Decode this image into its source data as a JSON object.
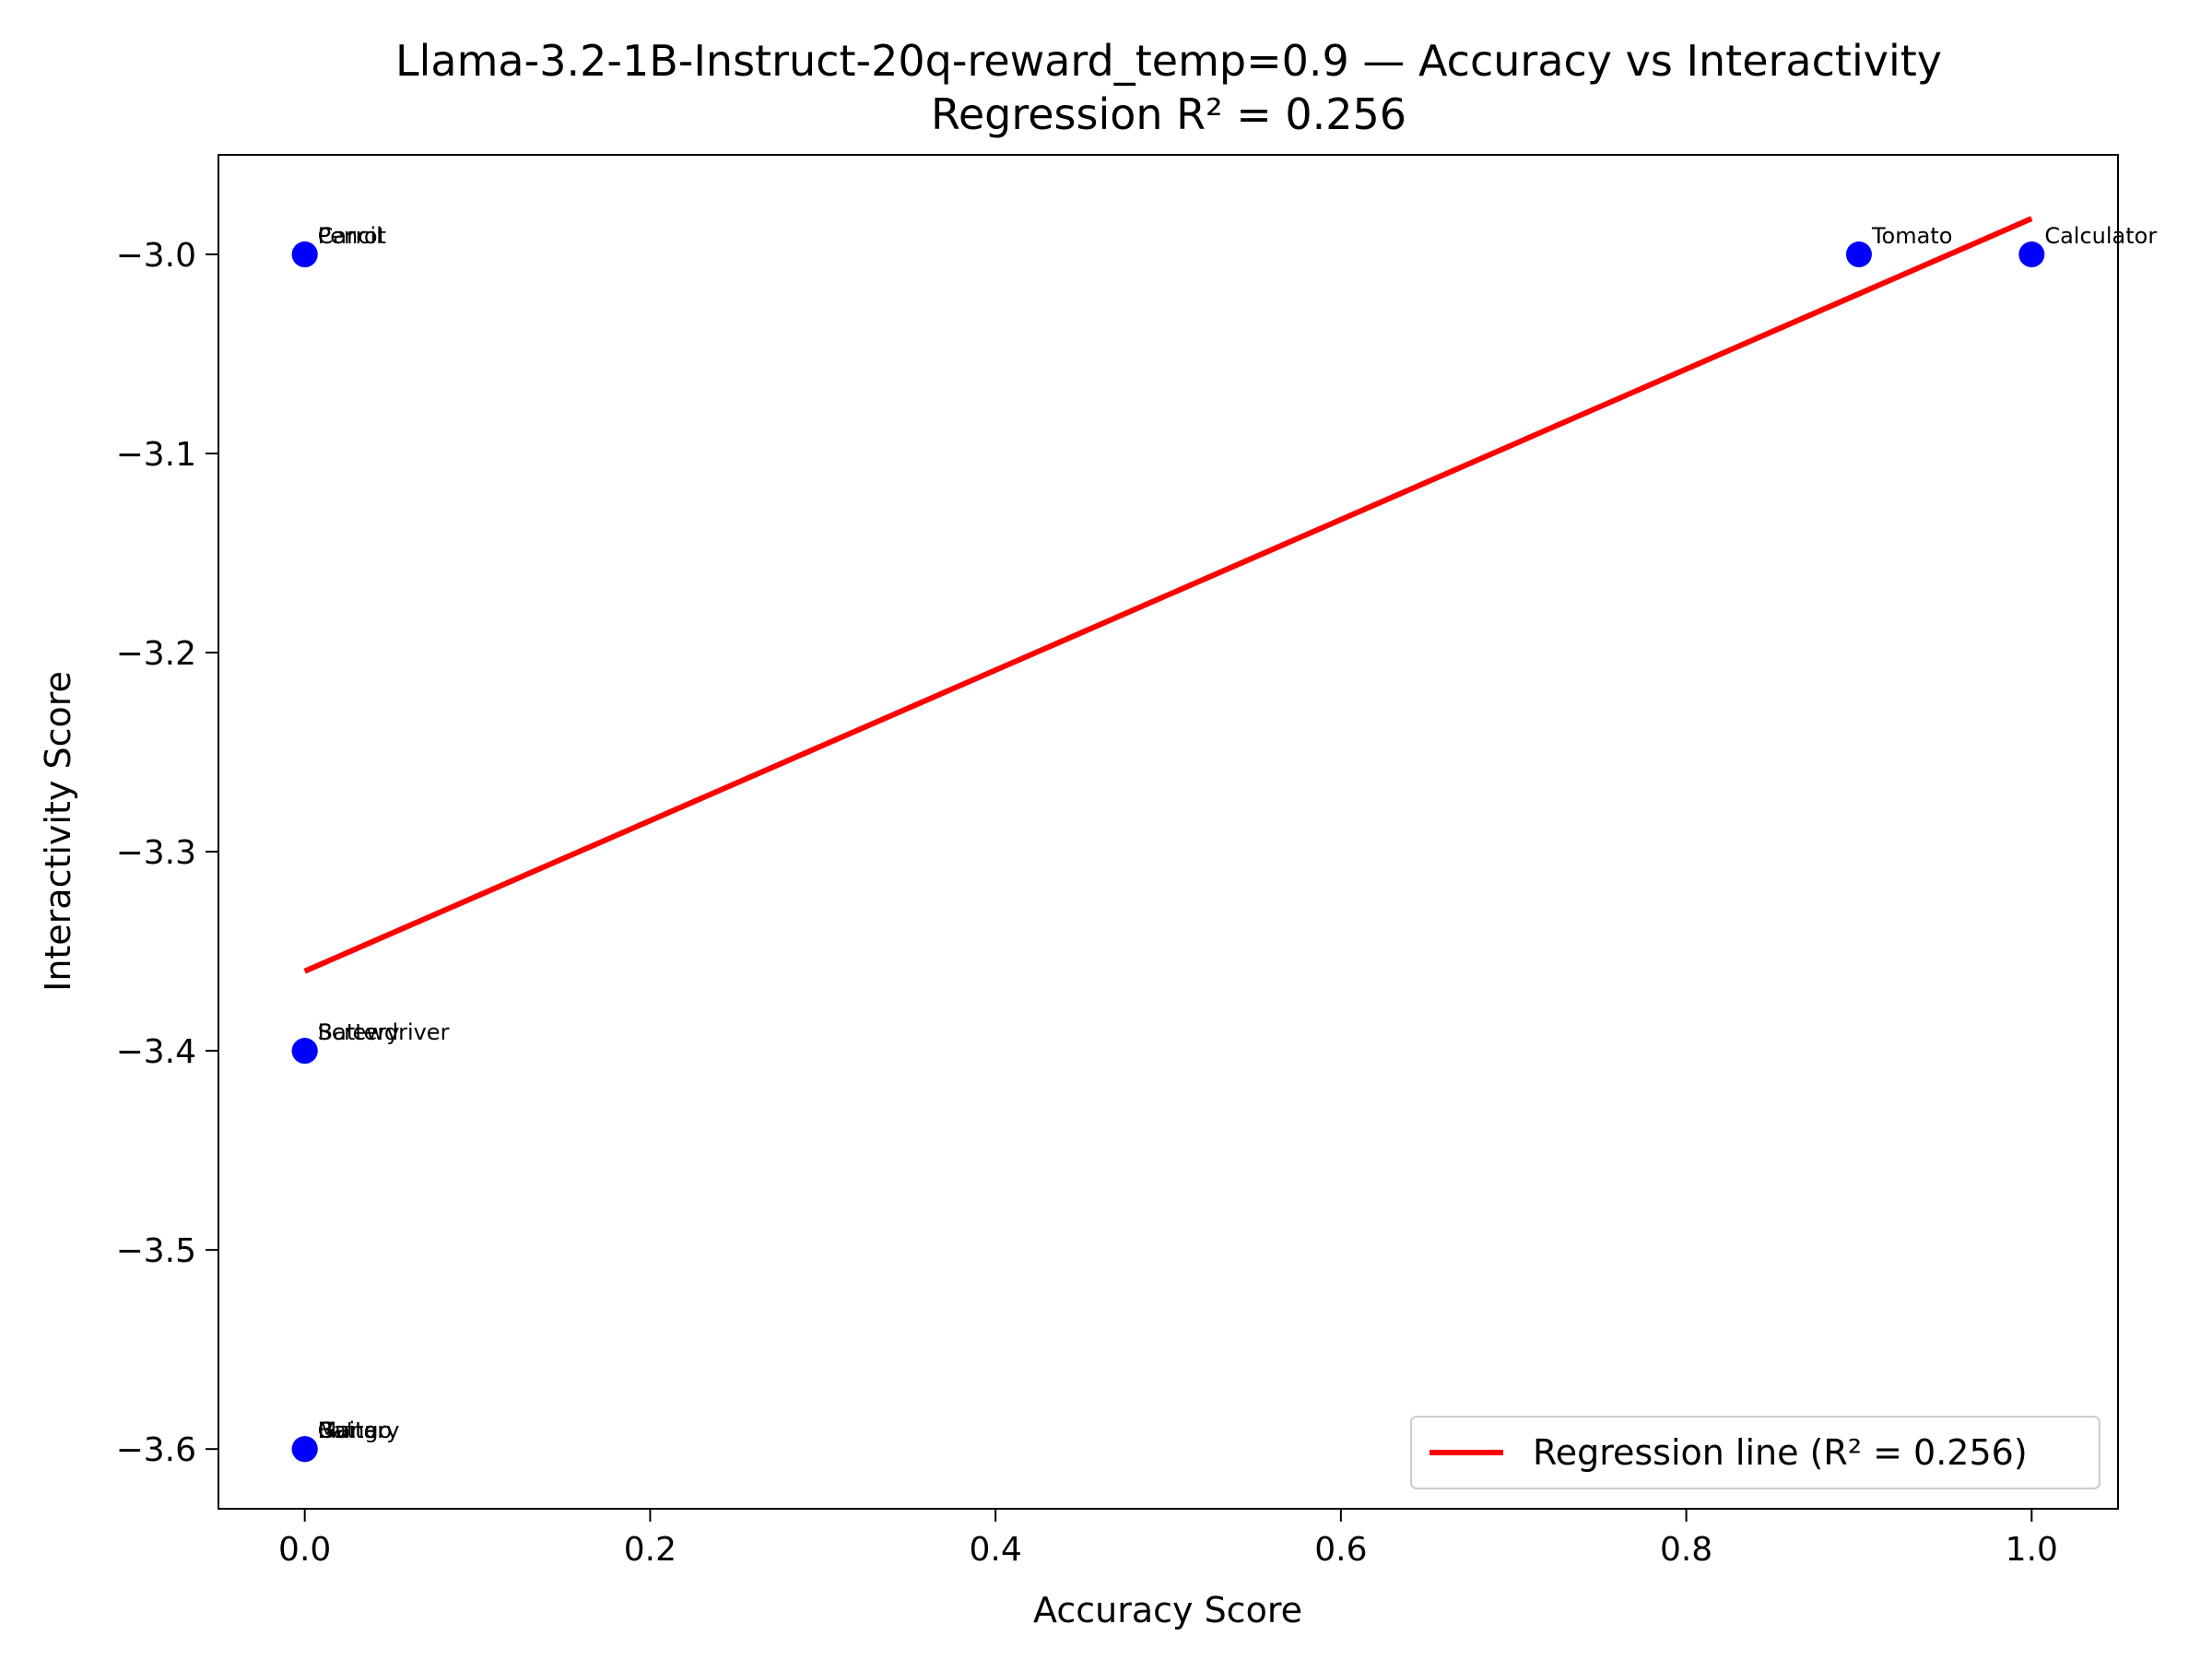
{
  "chart_data": {
    "type": "scatter",
    "title": "Llama-3.2-1B-Instruct-20q-reward_temp=0.9 — Accuracy vs Interactivity",
    "subtitle": "Regression R² = 0.256",
    "xlabel": "Accuracy Score",
    "ylabel": "Interactivity Score",
    "xlim": [
      -0.05,
      1.05
    ],
    "ylim": [
      -3.63,
      -2.95
    ],
    "xticks": [
      0.0,
      0.2,
      0.4,
      0.6,
      0.8,
      1.0
    ],
    "xtick_labels": [
      "0.0",
      "0.2",
      "0.4",
      "0.6",
      "0.8",
      "1.0"
    ],
    "yticks": [
      -3.0,
      -3.1,
      -3.2,
      -3.3,
      -3.4,
      -3.5,
      -3.6
    ],
    "ytick_labels": [
      "−3.0",
      "−3.1",
      "−3.2",
      "−3.3",
      "−3.4",
      "−3.5",
      "−3.6"
    ],
    "grid": false,
    "point_color": "#0000ff",
    "points": [
      {
        "label": "Carrot",
        "x": 0.0,
        "y": -3.0
      },
      {
        "label": "Pencil",
        "x": 0.0,
        "y": -3.0
      },
      {
        "label": "Tomato",
        "x": 0.9,
        "y": -3.0
      },
      {
        "label": "Calculator",
        "x": 1.0,
        "y": -3.0
      },
      {
        "label": "Battery",
        "x": 0.0,
        "y": -3.4
      },
      {
        "label": "Screwdriver",
        "x": 0.0,
        "y": -3.4
      },
      {
        "label": "Mango",
        "x": 0.0,
        "y": -3.6
      },
      {
        "label": "Guitar",
        "x": 0.0,
        "y": -3.6
      },
      {
        "label": "Battery",
        "x": 0.0,
        "y": -3.6
      }
    ],
    "regression": {
      "label": "Regression line (R² = 0.256)",
      "color": "#ff0000",
      "x": [
        0.0,
        1.0
      ],
      "y": [
        -3.36,
        -2.982
      ]
    },
    "legend_position": "lower-right"
  }
}
